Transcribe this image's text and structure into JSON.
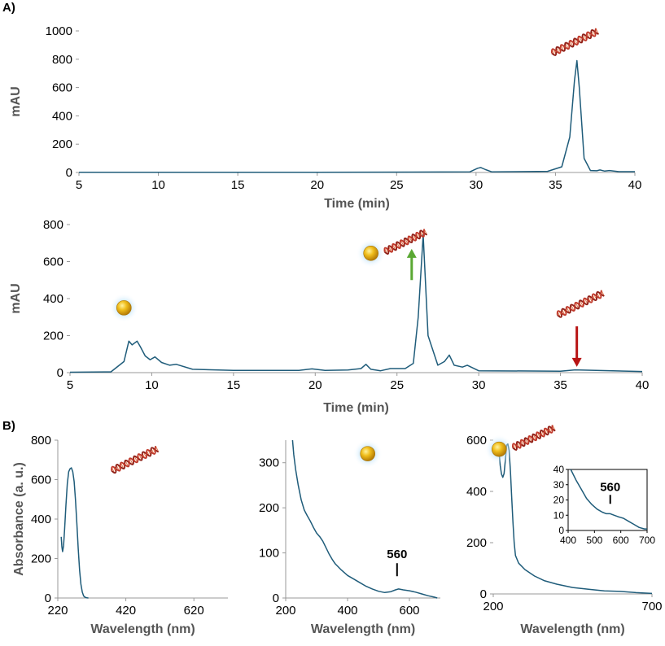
{
  "panels": {
    "a": "A)",
    "b": "B)"
  },
  "chart_data": [
    {
      "id": "A1",
      "type": "line",
      "title": "",
      "xlabel": "Time (min)",
      "ylabel": "mAU",
      "xlim": [
        5,
        40
      ],
      "ylim": [
        0,
        1000
      ],
      "xticks": [
        5,
        10,
        15,
        20,
        25,
        30,
        35,
        40
      ],
      "yticks": [
        0,
        200,
        400,
        600,
        800,
        1000
      ],
      "series": [
        {
          "name": "ssDNA",
          "color": "#1f5c7a",
          "x": [
            5,
            10,
            20,
            29.6,
            30.1,
            30.3,
            30.6,
            31,
            34.5,
            35.4,
            35.9,
            36.2,
            36.35,
            36.5,
            36.8,
            37.2,
            37.6,
            37.8,
            38.1,
            38.4,
            39,
            40
          ],
          "y": [
            2,
            2,
            2,
            4,
            30,
            35,
            20,
            4,
            8,
            40,
            250,
            650,
            790,
            600,
            100,
            14,
            12,
            18,
            10,
            14,
            6,
            6
          ]
        }
      ],
      "icons": [
        {
          "type": "dna",
          "x": 36.2,
          "y": 920
        }
      ]
    },
    {
      "id": "A2",
      "type": "line",
      "title": "",
      "xlabel": "Time (min)",
      "ylabel": "mAU",
      "xlim": [
        5,
        40
      ],
      "ylim": [
        0,
        800
      ],
      "xticks": [
        5,
        10,
        15,
        20,
        25,
        30,
        35,
        40
      ],
      "yticks": [
        0,
        200,
        400,
        600,
        800
      ],
      "series": [
        {
          "name": "AuNP + DNA conjugation mixture",
          "color": "#1f5c7a",
          "x": [
            5,
            7.5,
            8.3,
            8.6,
            8.8,
            9.1,
            9.3,
            9.6,
            9.9,
            10.2,
            10.6,
            11.1,
            11.5,
            12.5,
            15,
            19,
            19.8,
            20.6,
            22,
            22.8,
            23.1,
            23.4,
            24,
            24.6,
            25.5,
            26,
            26.3,
            26.6,
            26.9,
            27.5,
            27.9,
            28.2,
            28.5,
            29,
            29.3,
            30,
            35,
            35.9,
            40
          ],
          "y": [
            2,
            4,
            60,
            170,
            150,
            170,
            140,
            90,
            70,
            85,
            55,
            40,
            45,
            18,
            12,
            12,
            20,
            12,
            14,
            22,
            45,
            18,
            10,
            22,
            22,
            50,
            300,
            745,
            200,
            40,
            60,
            95,
            40,
            30,
            40,
            10,
            8,
            15,
            6
          ]
        }
      ],
      "icons": [
        {
          "type": "aunp",
          "x": 8.3,
          "y": 350
        },
        {
          "type": "aunp-dna",
          "x": 24.5,
          "y": 680
        },
        {
          "type": "dna",
          "x": 36.2,
          "y": 370
        }
      ],
      "arrows": [
        {
          "color": "#5aa833",
          "x": 25.9,
          "from": 500,
          "to": 660,
          "direction": "up"
        },
        {
          "color": "#b81414",
          "x": 36,
          "from": 250,
          "to": 40,
          "direction": "down"
        }
      ]
    },
    {
      "id": "B1",
      "type": "line",
      "title": "",
      "xlabel": "Wavelength (nm)",
      "ylabel": "Absorbance (a. u.)",
      "xlim": [
        220,
        720
      ],
      "ylim": [
        0,
        800
      ],
      "xticks": [
        220,
        420,
        620
      ],
      "yticks": [
        0,
        200,
        400,
        600,
        800
      ],
      "series": [
        {
          "name": "DNA",
          "color": "#1f5c7a",
          "x": [
            230,
            232,
            234,
            237,
            240,
            244,
            248,
            252,
            256,
            260,
            264,
            268,
            272,
            276,
            280,
            284,
            288,
            292,
            296,
            300,
            305,
            310
          ],
          "y": [
            310,
            260,
            235,
            265,
            350,
            470,
            580,
            640,
            655,
            660,
            640,
            590,
            500,
            380,
            250,
            140,
            70,
            30,
            10,
            4,
            1,
            0
          ]
        }
      ],
      "icons": [
        {
          "type": "dna",
          "x": 445,
          "y": 700
        }
      ]
    },
    {
      "id": "B2",
      "type": "line",
      "title": "",
      "xlabel": "Wavelength (nm)",
      "ylabel": "",
      "xlim": [
        200,
        700
      ],
      "ylim": [
        0,
        350
      ],
      "xticks": [
        200,
        400,
        600
      ],
      "yticks": [
        0,
        100,
        200,
        300
      ],
      "series": [
        {
          "name": "AuNP",
          "color": "#1f5c7a",
          "x": [
            222,
            226,
            232,
            240,
            250,
            260,
            270,
            280,
            290,
            300,
            310,
            320,
            330,
            340,
            350,
            360,
            380,
            400,
            420,
            440,
            460,
            480,
            500,
            520,
            540,
            555,
            565,
            580,
            600,
            620,
            640,
            660,
            680,
            690
          ],
          "y": [
            350,
            318,
            285,
            252,
            218,
            195,
            182,
            170,
            156,
            144,
            136,
            126,
            112,
            98,
            86,
            76,
            62,
            50,
            42,
            34,
            26,
            20,
            15,
            12,
            14,
            18,
            20,
            18,
            16,
            13,
            9,
            5,
            2,
            0
          ]
        }
      ],
      "icons": [
        {
          "type": "aunp",
          "x": 465,
          "y": 320
        }
      ],
      "annotations": [
        {
          "text": "560",
          "x": 560,
          "y": 88
        }
      ]
    },
    {
      "id": "B3",
      "type": "line",
      "title": "",
      "xlabel": "Wavelength (nm)",
      "ylabel": "",
      "xlim": [
        200,
        700
      ],
      "ylim": [
        0,
        600
      ],
      "xticks": [
        200,
        700
      ],
      "yticks": [
        0,
        200,
        400,
        600
      ],
      "series": [
        {
          "name": "AuNP-DNA conjugate",
          "color": "#1f5c7a",
          "x": [
            218,
            222,
            226,
            230,
            234,
            238,
            242,
            246,
            250,
            254,
            258,
            262,
            266,
            270,
            280,
            300,
            330,
            360,
            400,
            450,
            500,
            550,
            600,
            650,
            700
          ],
          "y": [
            560,
            500,
            468,
            455,
            470,
            520,
            580,
            585,
            560,
            480,
            380,
            280,
            200,
            150,
            120,
            95,
            70,
            52,
            38,
            25,
            18,
            12,
            10,
            5,
            2
          ]
        }
      ],
      "icons": [
        {
          "type": "aunp-dna",
          "x": 275,
          "y": 590
        }
      ],
      "inset": {
        "xlim": [
          400,
          700
        ],
        "ylim": [
          0,
          40
        ],
        "xticks": [
          400,
          500,
          600,
          700
        ],
        "yticks": [
          0,
          10,
          20,
          30,
          40
        ],
        "x": [
          410,
          430,
          450,
          470,
          490,
          510,
          530,
          545,
          560,
          575,
          590,
          610,
          630,
          650,
          670,
          690,
          700
        ],
        "y": [
          40,
          33,
          27,
          21,
          17,
          14,
          12,
          11,
          11,
          10,
          9,
          8,
          6,
          4,
          2,
          1,
          1
        ],
        "annotation": {
          "text": "560",
          "x": 560,
          "y": 26
        }
      }
    }
  ]
}
